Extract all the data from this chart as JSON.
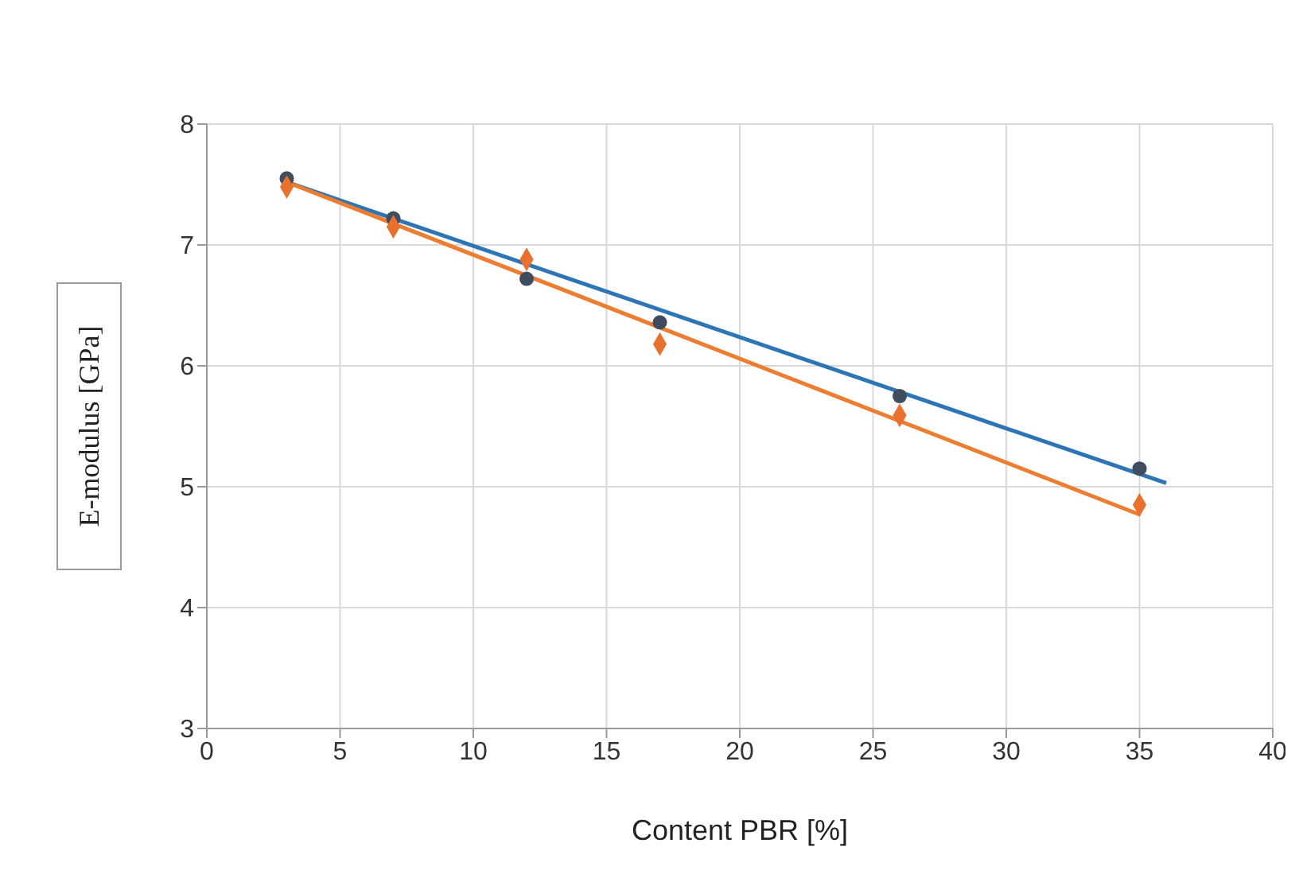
{
  "chart_data": {
    "type": "scatter",
    "xlabel": "Content PBR [%]",
    "ylabel": "E-modulus [GPa]",
    "xlim": [
      0,
      40
    ],
    "xticks": [
      0,
      5,
      10,
      15,
      20,
      25,
      30,
      35,
      40
    ],
    "ylim": [
      3,
      8
    ],
    "yticks": [
      3,
      4,
      5,
      6,
      7,
      8
    ],
    "grid": true,
    "legend": false,
    "series": [
      {
        "type": "scatter",
        "marker": "circle",
        "color": "#3f4d5e",
        "x": [
          3,
          7,
          12,
          17,
          26,
          35
        ],
        "values": [
          7.55,
          7.22,
          6.72,
          6.36,
          5.75,
          5.15
        ]
      },
      {
        "type": "scatter",
        "marker": "diamond",
        "color": "#e8712d",
        "x": [
          3,
          7,
          12,
          17,
          26,
          35
        ],
        "values": [
          7.48,
          7.15,
          6.88,
          6.18,
          5.59,
          4.85
        ]
      },
      {
        "type": "line",
        "marker": "none",
        "line_style": "solid",
        "color": "#2e75b6",
        "x": [
          3,
          36
        ],
        "values": [
          7.52,
          5.03
        ]
      },
      {
        "type": "line",
        "marker": "none",
        "line_style": "solid",
        "color": "#ed7d31",
        "x": [
          3,
          35
        ],
        "values": [
          7.52,
          4.77
        ]
      }
    ]
  }
}
